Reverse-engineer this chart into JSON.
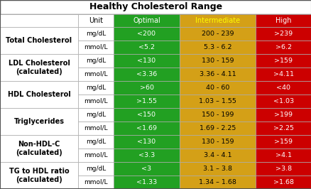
{
  "title": "Healthy Cholesterol Range",
  "col_headers": [
    "",
    "Unit",
    "Optimal",
    "Intermediate",
    "High"
  ],
  "col_header_bg": [
    "#ffffff",
    "#ffffff",
    "#22a022",
    "#d4a017",
    "#cc0000"
  ],
  "col_header_color": [
    "#000000",
    "#000000",
    "#ffffff",
    "#ffff00",
    "#ffffff"
  ],
  "row_groups": [
    {
      "label": "Total Cholesterol",
      "rows": [
        [
          "mg/dL",
          "<200",
          "200 - 239",
          ">239"
        ],
        [
          "mmol/L",
          "<5.2",
          "5.3 - 6.2",
          ">6.2"
        ]
      ]
    },
    {
      "label": "LDL Cholesterol\n(calculated)",
      "rows": [
        [
          "mg/dL",
          "<130",
          "130 - 159",
          ">159"
        ],
        [
          "mmol/L",
          "<3.36",
          "3.36 - 4.11",
          ">4.11"
        ]
      ]
    },
    {
      "label": "HDL Cholesterol",
      "rows": [
        [
          "mg/dL",
          ">60",
          "40 - 60",
          "<40"
        ],
        [
          "mmol/L",
          ">1.55",
          "1.03 – 1.55",
          "<1.03"
        ]
      ]
    },
    {
      "label": "Triglycerides",
      "rows": [
        [
          "mg/dL",
          "<150",
          "150 - 199",
          ">199"
        ],
        [
          "mmol/L",
          "<1.69",
          "1.69 - 2.25",
          ">2.25"
        ]
      ]
    },
    {
      "label": "Non-HDL-C\n(calculated)",
      "rows": [
        [
          "mg/dL",
          "<130",
          "130 - 159",
          ">159"
        ],
        [
          "mmol/L",
          "<3.3",
          "3.4 - 4.1",
          ">4.1"
        ]
      ]
    },
    {
      "label": "TG to HDL ratio\n(calculated)",
      "rows": [
        [
          "mg/dL",
          "<3",
          "3.1 – 3.8",
          ">3.8"
        ],
        [
          "mmol/L",
          "<1.33",
          "1.34 – 1.68",
          ">1.68"
        ]
      ]
    }
  ],
  "opt_bg": "#22a022",
  "int_bg": "#d4a017",
  "high_bg": "#cc0000",
  "opt_fg": "#ffffff",
  "int_fg": "#000000",
  "high_fg": "#ffffff",
  "white_bg": "#ffffff",
  "border_color": "#aaaaaa",
  "outer_border": "#555555",
  "title_fontsize": 9,
  "header_fontsize": 7,
  "label_fontsize": 7,
  "unit_fontsize": 6.5,
  "cell_fontsize": 6.8
}
